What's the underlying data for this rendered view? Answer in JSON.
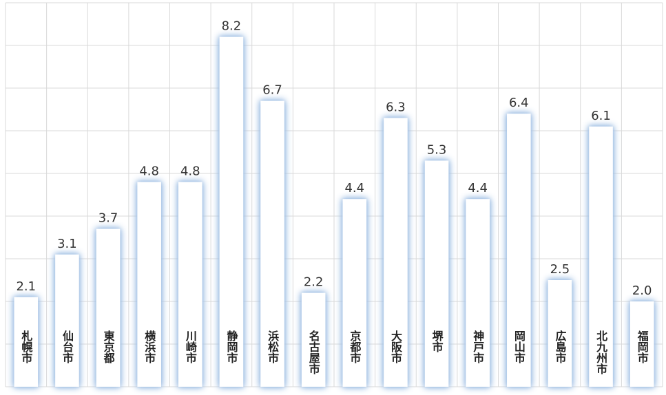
{
  "chart_data": {
    "type": "bar",
    "categories": [
      "札幌市",
      "仙台市",
      "東京都",
      "横浜市",
      "川崎市",
      "静岡市",
      "浜松市",
      "名古屋市",
      "京都市",
      "大阪市",
      "堺市",
      "神戸市",
      "岡山市",
      "広島市",
      "北九州市",
      "福岡市"
    ],
    "values": [
      2.1,
      3.1,
      3.7,
      4.8,
      4.8,
      8.2,
      6.7,
      2.2,
      4.4,
      6.3,
      5.3,
      4.4,
      6.4,
      2.5,
      6.1,
      2.0
    ],
    "value_labels": [
      "2.1",
      "3.1",
      "3.7",
      "4.8",
      "4.8",
      "8.2",
      "6.7",
      "2.2",
      "4.4",
      "6.3",
      "5.3",
      "4.4",
      "6.4",
      "2.5",
      "6.1",
      "2.0"
    ],
    "color": "#ffffff",
    "ylim": [
      0,
      9
    ],
    "yticks": [
      0,
      1,
      2,
      3,
      4,
      5,
      6,
      7,
      8,
      9
    ],
    "grid": true
  }
}
